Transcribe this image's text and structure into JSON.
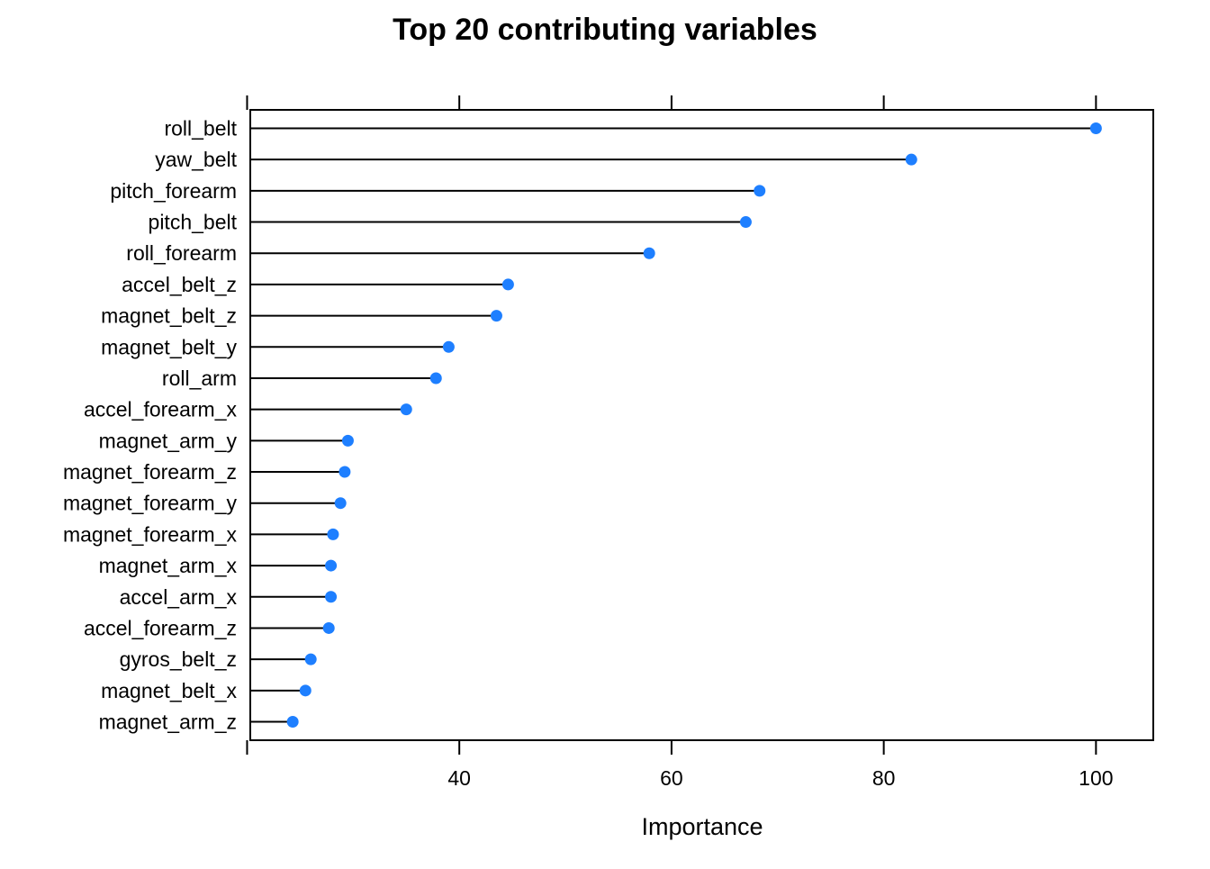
{
  "chart_data": {
    "type": "dot",
    "title": "Top 20 contributing variables",
    "xlabel": "Importance",
    "ylabel": "",
    "xlim": [
      20.3,
      105.4
    ],
    "x_ticks": [
      40,
      60,
      80,
      100
    ],
    "x_tick_labels": [
      "40",
      "60",
      "80",
      "100"
    ],
    "grid": false,
    "point_color": "#1e7fff",
    "line_color": "#000000",
    "categories": [
      "roll_belt",
      "yaw_belt",
      "pitch_forearm",
      "pitch_belt",
      "roll_forearm",
      "accel_belt_z",
      "magnet_belt_z",
      "magnet_belt_y",
      "roll_arm",
      "accel_forearm_x",
      "magnet_arm_y",
      "magnet_forearm_z",
      "magnet_forearm_y",
      "magnet_forearm_x",
      "magnet_arm_x",
      "accel_arm_x",
      "accel_forearm_z",
      "gyros_belt_z",
      "magnet_belt_x",
      "magnet_arm_z"
    ],
    "values": [
      100.0,
      82.6,
      68.3,
      67.0,
      57.9,
      44.6,
      43.5,
      39.0,
      37.8,
      35.0,
      29.5,
      29.2,
      28.8,
      28.1,
      27.9,
      27.9,
      27.7,
      26.0,
      25.5,
      24.3
    ]
  }
}
